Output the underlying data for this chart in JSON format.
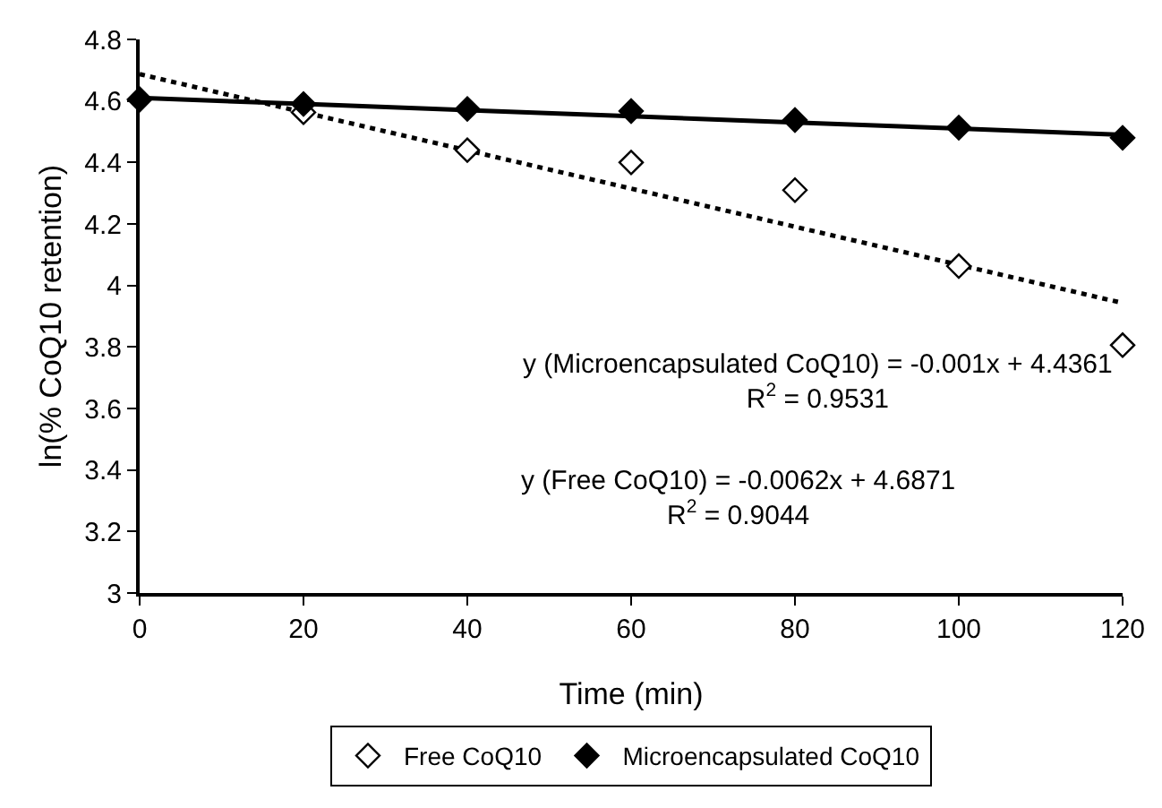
{
  "chart_data": {
    "type": "scatter",
    "xlabel": "Time (min)",
    "ylabel": "ln(% CoQ10 retention)",
    "x": [
      0,
      20,
      40,
      60,
      80,
      100,
      120
    ],
    "series": [
      {
        "name": "Free CoQ10",
        "color": "#ffffff",
        "values": [
          4.605,
          4.563,
          4.44,
          4.4,
          4.31,
          4.063,
          3.806
        ]
      },
      {
        "name": "Microencapsulated CoQ10",
        "color": "#000000",
        "values": [
          4.605,
          4.59,
          4.574,
          4.567,
          4.538,
          4.513,
          4.48
        ]
      },
      {
        "type": "line",
        "color": "#000000",
        "line_style": "dotted",
        "marker": "none",
        "values": [
          4.687,
          4.563,
          4.439,
          4.315,
          4.191,
          4.067,
          3.943
        ]
      },
      {
        "type": "line",
        "color": "#000000",
        "line_style": "solid",
        "marker": "none",
        "values": [
          4.61,
          4.59,
          4.57,
          4.55,
          4.53,
          4.51,
          4.49
        ]
      }
    ],
    "xlim": [
      0,
      120
    ],
    "xticks": [
      0,
      20,
      40,
      60,
      80,
      100,
      120
    ],
    "ylim": [
      3,
      4.8
    ],
    "yticks": [
      3,
      3.2,
      3.4,
      3.6,
      3.8,
      4,
      4.2,
      4.4,
      4.6,
      4.8
    ],
    "grid": false,
    "legend": "bottom",
    "marker": "diamond",
    "annotations": [
      "y (Microencapsulated CoQ10) = -0.001x + 4.4361\nR$^{2}$ = 0.9531",
      "y (Free CoQ10) = -0.0062x + 4.6871\nR$^{2}$ = 0.9044"
    ]
  }
}
